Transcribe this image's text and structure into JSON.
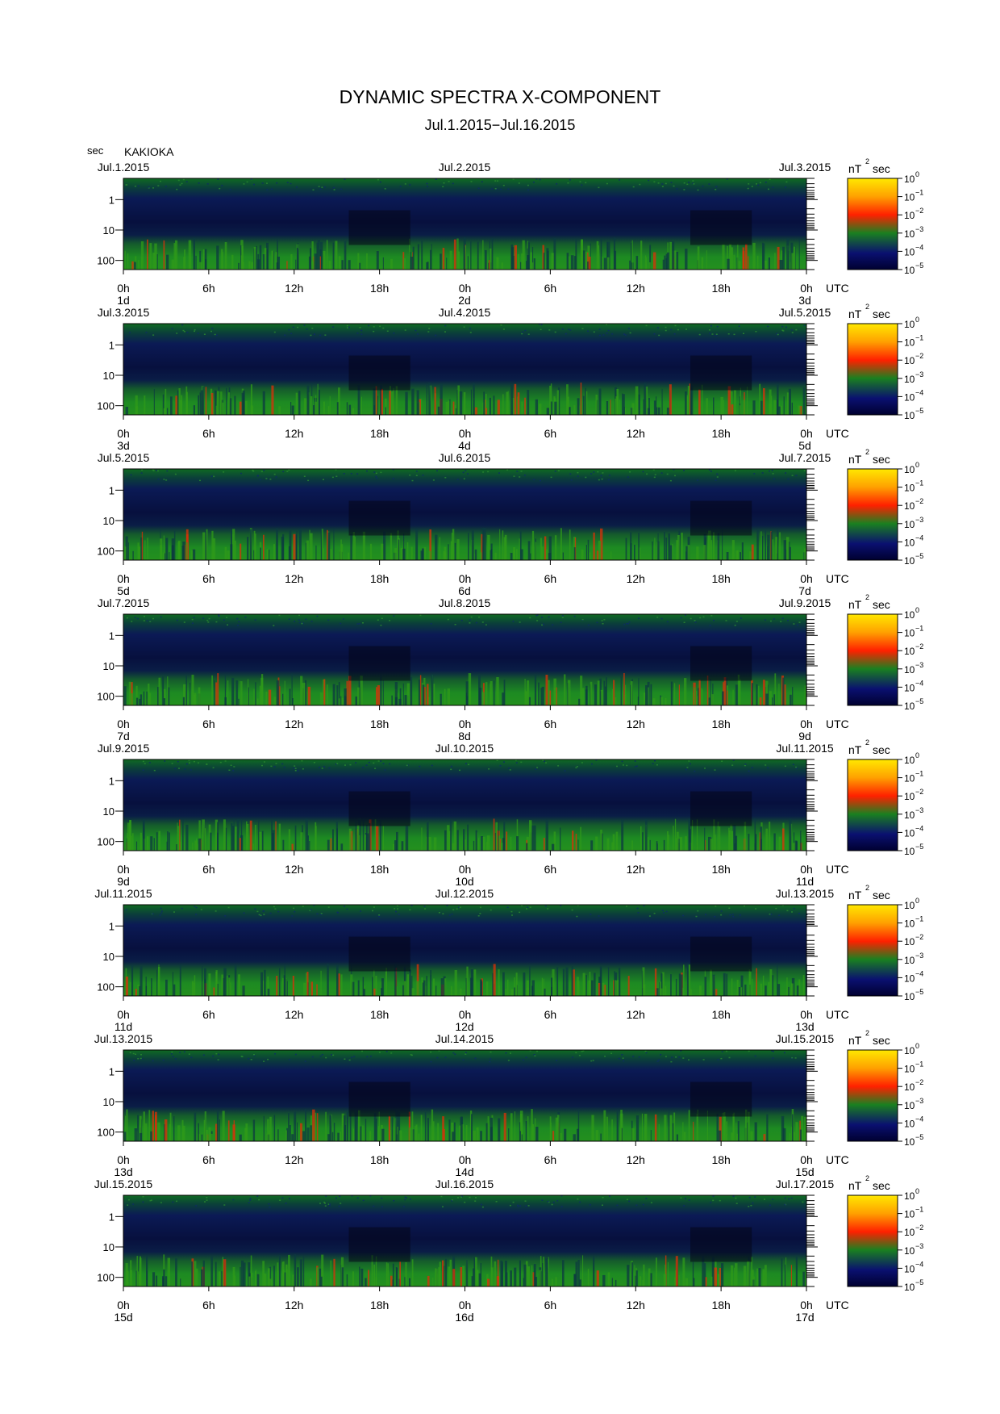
{
  "page": {
    "title": "DYNAMIC SPECTRA X-COMPONENT",
    "subtitle": "Jul.1.2015−Jul.16.2015",
    "y_unit_label": "sec",
    "station": "KAKIOKA",
    "time_unit_label": "UTC",
    "colorbar_unit_main": "nT",
    "colorbar_unit_exp": "2",
    "colorbar_unit_tail": "sec"
  },
  "chart_data": {
    "type": "heatmap",
    "title": "DYNAMIC SPECTRA X-COMPONENT",
    "subtitle": "Jul.1.2015−Jul.16.2015",
    "ylabel": "sec",
    "y_scale": "log",
    "y_axis_reversed": true,
    "y_range_sec": [
      0.2,
      200
    ],
    "y_tick_labels": [
      "1",
      "10",
      "100"
    ],
    "x_tick_labels": [
      "0h",
      "6h",
      "12h",
      "18h",
      "0h",
      "6h",
      "12h",
      "18h",
      "0h"
    ],
    "colorbar": {
      "unit": "nT²sec",
      "scale": "log",
      "range": [
        1e-05,
        1
      ],
      "tick_labels": [
        {
          "base": "10",
          "exp": "0"
        },
        {
          "base": "10",
          "exp": "−1"
        },
        {
          "base": "10",
          "exp": "−2"
        },
        {
          "base": "10",
          "exp": "−3"
        },
        {
          "base": "10",
          "exp": "−4"
        },
        {
          "base": "10",
          "exp": "−5"
        }
      ],
      "colors": [
        "#000030",
        "#0a1070",
        "#1a8020",
        "#ff2000",
        "#ffa000",
        "#ffe800"
      ]
    },
    "panels": [
      {
        "date_left": "Jul.1.2015",
        "date_mid": "Jul.2.2015",
        "date_right": "Jul.3.2015",
        "day_left": "1d",
        "day_mid": "2d",
        "day_right": "3d"
      },
      {
        "date_left": "Jul.3.2015",
        "date_mid": "Jul.4.2015",
        "date_right": "Jul.5.2015",
        "day_left": "3d",
        "day_mid": "4d",
        "day_right": "5d"
      },
      {
        "date_left": "Jul.5.2015",
        "date_mid": "Jul.6.2015",
        "date_right": "Jul.7.2015",
        "day_left": "5d",
        "day_mid": "6d",
        "day_right": "7d"
      },
      {
        "date_left": "Jul.7.2015",
        "date_mid": "Jul.8.2015",
        "date_right": "Jul.9.2015",
        "day_left": "7d",
        "day_mid": "8d",
        "day_right": "9d"
      },
      {
        "date_left": "Jul.9.2015",
        "date_mid": "Jul.10.2015",
        "date_right": "Jul.11.2015",
        "day_left": "9d",
        "day_mid": "10d",
        "day_right": "11d"
      },
      {
        "date_left": "Jul.11.2015",
        "date_mid": "Jul.12.2015",
        "date_right": "Jul.13.2015",
        "day_left": "11d",
        "day_mid": "12d",
        "day_right": "13d"
      },
      {
        "date_left": "Jul.13.2015",
        "date_mid": "Jul.14.2015",
        "date_right": "Jul.15.2015",
        "day_left": "13d",
        "day_mid": "14d",
        "day_right": "15d"
      },
      {
        "date_left": "Jul.15.2015",
        "date_mid": "Jul.16.2015",
        "date_right": "Jul.17.2015",
        "day_left": "15d",
        "day_mid": "16d",
        "day_right": "17d"
      }
    ]
  }
}
